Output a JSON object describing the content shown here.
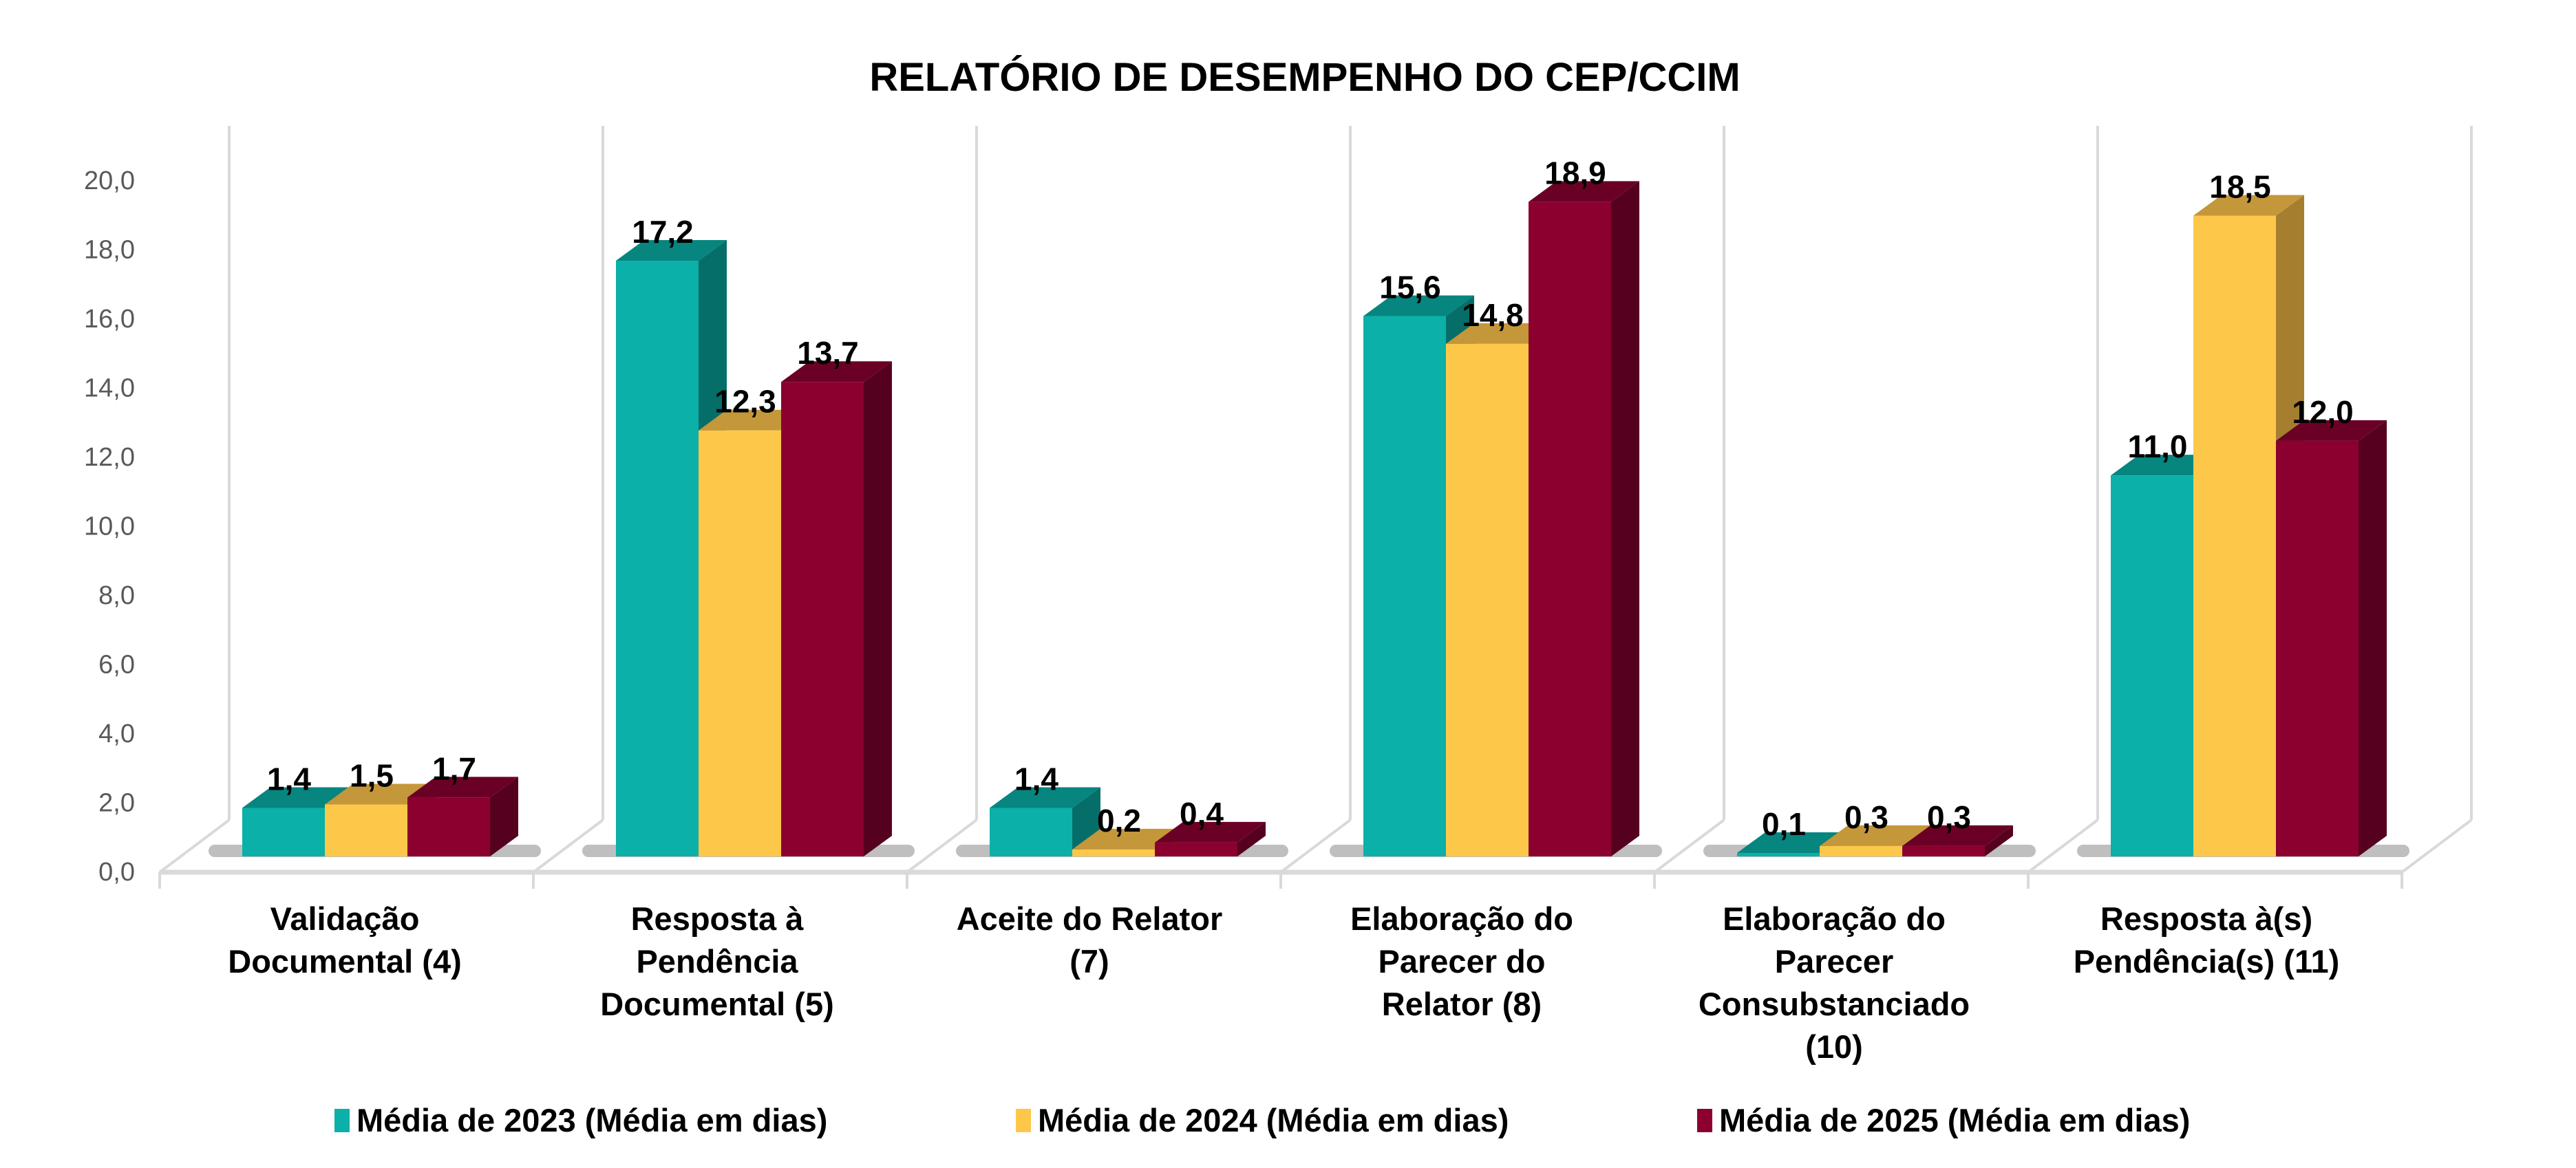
{
  "chart_data": {
    "type": "bar",
    "style": "3d-clustered-column",
    "title": "RELATÓRIO DE DESEMPENHO DO CEP/CCIM",
    "xlabel": "",
    "ylabel": "",
    "ylim": [
      0,
      20
    ],
    "yticks": [
      "0,0",
      "2,0",
      "4,0",
      "6,0",
      "8,0",
      "10,0",
      "12,0",
      "14,0",
      "16,0",
      "18,0",
      "20,0"
    ],
    "grid": false,
    "legend_position": "bottom",
    "categories": [
      [
        "Validação",
        "Documental (4)"
      ],
      [
        "Resposta à",
        "Pendência",
        "Documental (5)"
      ],
      [
        "Aceite do Relator",
        "(7)"
      ],
      [
        "Elaboração do",
        "Parecer do",
        "Relator (8)"
      ],
      [
        "Elaboração do",
        "Parecer",
        "Consubstanciado",
        "(10)"
      ],
      [
        "Resposta à(s)",
        "Pendência(s) (11)"
      ]
    ],
    "series": [
      {
        "name": "Média de 2023 (Média em dias)",
        "color": "#0BB0A8",
        "top": "#07857F",
        "side": "#066E69",
        "values": [
          1.4,
          17.2,
          1.4,
          15.6,
          0.1,
          11.0
        ],
        "labels": [
          "1,4",
          "17,2",
          "1,4",
          "15,6",
          "0,1",
          "11,0"
        ]
      },
      {
        "name": "Média de 2024 (Média em dias)",
        "color": "#FDC84A",
        "top": "#C4973A",
        "side": "#A57E30",
        "values": [
          1.5,
          12.3,
          0.2,
          14.8,
          0.3,
          18.5
        ],
        "labels": [
          "1,5",
          "12,3",
          "0,2",
          "14,8",
          "0,3",
          "18,5"
        ]
      },
      {
        "name": "Média de 2025 (Média em dias)",
        "color": "#8C0030",
        "top": "#6B0026",
        "side": "#560020",
        "values": [
          1.7,
          13.7,
          0.4,
          18.9,
          0.3,
          12.0
        ],
        "labels": [
          "1,7",
          "13,7",
          "0,4",
          "18,9",
          "0,3",
          "12,0"
        ]
      }
    ]
  }
}
